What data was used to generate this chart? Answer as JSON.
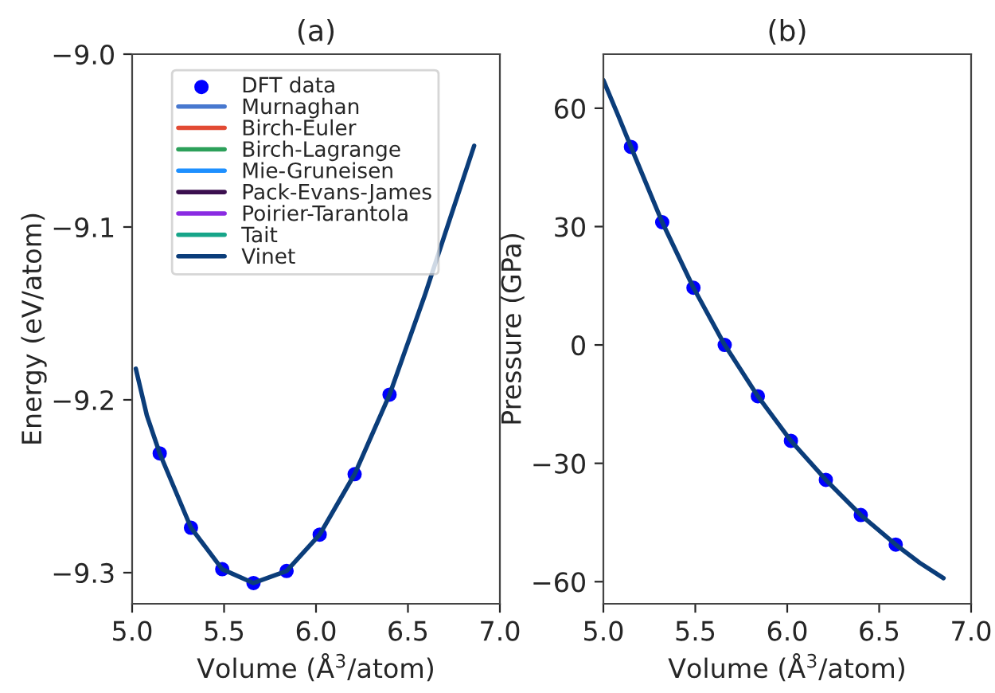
{
  "chart_data": [
    {
      "type": "line",
      "title": "(a)",
      "xlabel": "Volume (Å$^{3}$/atom)",
      "ylabel": "Energy (eV/atom)",
      "xlim": [
        5.0,
        7.0
      ],
      "xticks": [
        {
          "value": 5.0,
          "label": "5.0"
        },
        {
          "value": 5.5,
          "label": "5.5"
        },
        {
          "value": 6.0,
          "label": "6.0"
        },
        {
          "value": 6.5,
          "label": "6.5"
        },
        {
          "value": 7.0,
          "label": "7.0"
        }
      ],
      "ylim": [
        -9.318,
        -9.0
      ],
      "yticks": [
        {
          "value": -9.3,
          "label": "−9.3"
        },
        {
          "value": -9.2,
          "label": "−9.2"
        },
        {
          "value": -9.1,
          "label": "−9.1"
        },
        {
          "value": -9.0,
          "label": "−9.0"
        }
      ],
      "grid": false,
      "legend": "top left",
      "series": [
        {
          "name": "DFT data",
          "type": "scatter",
          "marker": "circle",
          "color": "#0000ff",
          "x": [
            5.15,
            5.32,
            5.49,
            5.66,
            5.84,
            6.02,
            6.21,
            6.4
          ],
          "values": [
            -9.231,
            -9.274,
            -9.298,
            -9.306,
            -9.299,
            -9.278,
            -9.243,
            -9.197
          ]
        },
        {
          "name": "Murnaghan",
          "color": "#4878cf"
        },
        {
          "name": "Birch-Euler",
          "color": "#e24a33"
        },
        {
          "name": "Birch-Lagrange",
          "color": "#2ca05a"
        },
        {
          "name": "Mie-Gruneisen",
          "color": "#1e90ff"
        },
        {
          "name": "Pack-Evans-James",
          "color": "#3b0f4f"
        },
        {
          "name": "Poirier-Tarantola",
          "color": "#8a2be2"
        },
        {
          "name": "Tait",
          "color": "#17a589"
        },
        {
          "name": "Vinet",
          "color": "#0b3d7a",
          "x": [
            5.02,
            5.08,
            5.15,
            5.32,
            5.49,
            5.66,
            5.84,
            6.02,
            6.21,
            6.4,
            6.59,
            6.72,
            6.86
          ],
          "values": [
            -9.182,
            -9.209,
            -9.231,
            -9.274,
            -9.298,
            -9.306,
            -9.299,
            -9.278,
            -9.243,
            -9.197,
            -9.14,
            -9.098,
            -9.053
          ]
        }
      ]
    },
    {
      "type": "line",
      "title": "(b)",
      "xlabel": "Volume (Å$^{3}$/atom)",
      "ylabel": "Pressure (GPa)",
      "xlim": [
        5.0,
        7.0
      ],
      "xticks": [
        {
          "value": 5.0,
          "label": "5.0"
        },
        {
          "value": 5.5,
          "label": "5.5"
        },
        {
          "value": 6.0,
          "label": "6.0"
        },
        {
          "value": 6.5,
          "label": "6.5"
        },
        {
          "value": 7.0,
          "label": "7.0"
        }
      ],
      "ylim": [
        -65.6,
        73.7
      ],
      "yticks": [
        {
          "value": -60,
          "label": "−60"
        },
        {
          "value": -30,
          "label": "−30"
        },
        0,
        30,
        60
      ],
      "grid": false,
      "series": [
        {
          "type": "scatter",
          "marker": "circle",
          "color": "#0000ff",
          "x": [
            5.15,
            5.32,
            5.49,
            5.66,
            5.84,
            6.02,
            6.21,
            6.4,
            6.59
          ],
          "values": [
            50.2,
            31.1,
            14.5,
            0,
            -13.0,
            -24.3,
            -34.2,
            -43.1,
            -50.6
          ]
        },
        {
          "color": "#0b3d7a",
          "x": [
            5.0,
            5.08,
            5.15,
            5.32,
            5.49,
            5.66,
            5.84,
            6.02,
            6.21,
            6.4,
            6.59,
            6.72,
            6.85
          ],
          "values": [
            67.1,
            58.2,
            50.2,
            31.1,
            14.5,
            0,
            -13.0,
            -24.3,
            -34.2,
            -43.1,
            -50.6,
            -55.2,
            -59.1
          ]
        }
      ]
    }
  ]
}
